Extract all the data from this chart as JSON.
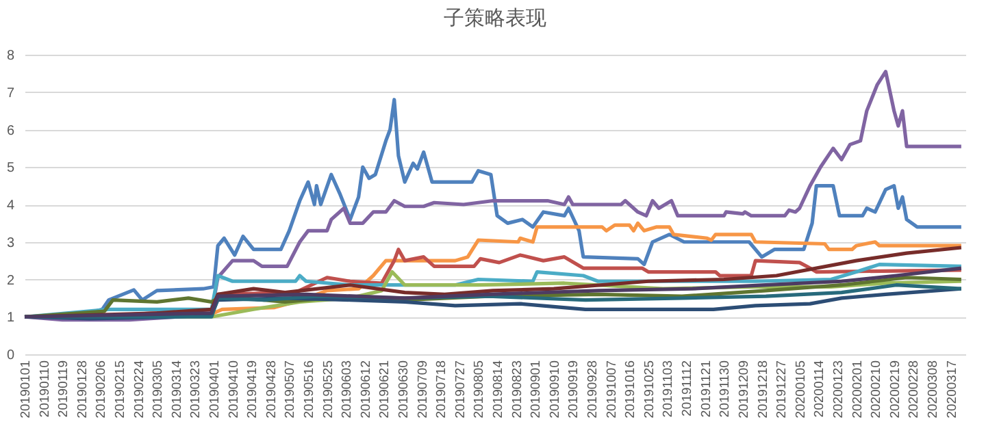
{
  "chart_data": {
    "type": "line",
    "title": "子策略表现",
    "ylim": [
      0,
      8
    ],
    "yticks": [
      0,
      1,
      2,
      3,
      4,
      5,
      6,
      7,
      8
    ],
    "grid": "y",
    "xlim": [
      "2019-01-01",
      "2020-03-24"
    ],
    "xticks": [
      {
        "value": "2019-01-01",
        "label": "20190101"
      },
      {
        "value": "2019-01-10",
        "label": "20190110"
      },
      {
        "value": "2019-01-19",
        "label": "20190119"
      },
      {
        "value": "2019-01-28",
        "label": "20190128"
      },
      {
        "value": "2019-02-06",
        "label": "20190206"
      },
      {
        "value": "2019-02-15",
        "label": "20190215"
      },
      {
        "value": "2019-02-24",
        "label": "20190224"
      },
      {
        "value": "2019-03-05",
        "label": "20190305"
      },
      {
        "value": "2019-03-14",
        "label": "20190314"
      },
      {
        "value": "2019-03-23",
        "label": "20190323"
      },
      {
        "value": "2019-04-01",
        "label": "20190401"
      },
      {
        "value": "2019-04-10",
        "label": "20190410"
      },
      {
        "value": "2019-04-19",
        "label": "20190419"
      },
      {
        "value": "2019-04-28",
        "label": "20190428"
      },
      {
        "value": "2019-05-07",
        "label": "20190507"
      },
      {
        "value": "2019-05-16",
        "label": "20190516"
      },
      {
        "value": "2019-05-25",
        "label": "20190525"
      },
      {
        "value": "2019-06-03",
        "label": "20190603"
      },
      {
        "value": "2019-06-12",
        "label": "20190612"
      },
      {
        "value": "2019-06-21",
        "label": "20190621"
      },
      {
        "value": "2019-06-30",
        "label": "20190630"
      },
      {
        "value": "2019-07-09",
        "label": "20190709"
      },
      {
        "value": "2019-07-18",
        "label": "20190718"
      },
      {
        "value": "2019-07-27",
        "label": "20190727"
      },
      {
        "value": "2019-08-05",
        "label": "20190805"
      },
      {
        "value": "2019-08-14",
        "label": "20190814"
      },
      {
        "value": "2019-08-23",
        "label": "20190823"
      },
      {
        "value": "2019-09-01",
        "label": "20190901"
      },
      {
        "value": "2019-09-10",
        "label": "20190910"
      },
      {
        "value": "2019-09-19",
        "label": "20190919"
      },
      {
        "value": "2019-09-28",
        "label": "20190928"
      },
      {
        "value": "2019-10-07",
        "label": "20191007"
      },
      {
        "value": "2019-10-16",
        "label": "20191016"
      },
      {
        "value": "2019-10-25",
        "label": "20191025"
      },
      {
        "value": "2019-11-03",
        "label": "20191103"
      },
      {
        "value": "2019-11-12",
        "label": "20191112"
      },
      {
        "value": "2019-11-21",
        "label": "20191121"
      },
      {
        "value": "2019-11-30",
        "label": "20191130"
      },
      {
        "value": "2019-12-09",
        "label": "20191209"
      },
      {
        "value": "2019-12-18",
        "label": "20191218"
      },
      {
        "value": "2019-12-27",
        "label": "20191227"
      },
      {
        "value": "2020-01-05",
        "label": "20200105"
      },
      {
        "value": "2020-01-14",
        "label": "20200114"
      },
      {
        "value": "2020-01-23",
        "label": "20200123"
      },
      {
        "value": "2020-02-01",
        "label": "20200201"
      },
      {
        "value": "2020-02-10",
        "label": "20200210"
      },
      {
        "value": "2020-02-19",
        "label": "20200219"
      },
      {
        "value": "2020-02-28",
        "label": "20200228"
      },
      {
        "value": "2020-03-08",
        "label": "20200308"
      },
      {
        "value": "2020-03-17",
        "label": "20200317"
      }
    ],
    "series": [
      {
        "color": "#4f81bd",
        "x": [
          "2019-01-01",
          "2019-01-28",
          "2019-02-07",
          "2019-02-10",
          "2019-02-22",
          "2019-02-26",
          "2019-03-05",
          "2019-03-27",
          "2019-04-01",
          "2019-04-03",
          "2019-04-06",
          "2019-04-11",
          "2019-04-15",
          "2019-04-20",
          "2019-05-03",
          "2019-05-07",
          "2019-05-12",
          "2019-05-16",
          "2019-05-19",
          "2019-05-20",
          "2019-05-22",
          "2019-05-27",
          "2019-05-31",
          "2019-06-05",
          "2019-06-09",
          "2019-06-11",
          "2019-06-14",
          "2019-06-17",
          "2019-06-22",
          "2019-06-24",
          "2019-06-26",
          "2019-06-28",
          "2019-07-01",
          "2019-07-05",
          "2019-07-07",
          "2019-07-10",
          "2019-07-14",
          "2019-08-02",
          "2019-08-05",
          "2019-08-11",
          "2019-08-14",
          "2019-08-19",
          "2019-08-26",
          "2019-08-31",
          "2019-09-05",
          "2019-09-15",
          "2019-09-17",
          "2019-09-22",
          "2019-09-24",
          "2019-10-20",
          "2019-10-23",
          "2019-10-27",
          "2019-11-04",
          "2019-11-11",
          "2019-12-12",
          "2019-12-18",
          "2019-12-24",
          "2020-01-07",
          "2020-01-11",
          "2020-01-13",
          "2020-01-21",
          "2020-01-24",
          "2020-02-04",
          "2020-02-06",
          "2020-02-10",
          "2020-02-15",
          "2020-02-19",
          "2020-02-21",
          "2020-02-23",
          "2020-02-25",
          "2020-03-01",
          "2020-03-22"
        ],
        "values": [
          1.0,
          1.05,
          1.2,
          1.45,
          1.72,
          1.45,
          1.7,
          1.75,
          1.8,
          2.9,
          3.1,
          2.65,
          3.15,
          2.8,
          2.8,
          3.3,
          4.1,
          4.6,
          4.0,
          4.5,
          4.0,
          4.8,
          4.3,
          3.6,
          4.2,
          5.0,
          4.7,
          4.8,
          5.7,
          6.0,
          6.8,
          5.3,
          4.6,
          5.1,
          4.95,
          5.4,
          4.6,
          4.6,
          4.9,
          4.8,
          3.7,
          3.5,
          3.6,
          3.4,
          3.8,
          3.7,
          3.9,
          3.3,
          2.6,
          2.55,
          2.4,
          3.0,
          3.2,
          3.0,
          3.0,
          2.6,
          2.8,
          2.8,
          3.5,
          4.5,
          4.5,
          3.7,
          3.7,
          3.9,
          3.8,
          4.4,
          4.5,
          3.9,
          4.2,
          3.6,
          3.4,
          3.4
        ]
      },
      {
        "color": "#8064a2",
        "x": [
          "2019-01-01",
          "2019-01-19",
          "2019-02-20",
          "2019-03-14",
          "2019-03-31",
          "2019-04-03",
          "2019-04-10",
          "2019-04-20",
          "2019-04-24",
          "2019-05-06",
          "2019-05-12",
          "2019-05-16",
          "2019-05-25",
          "2019-05-27",
          "2019-06-02",
          "2019-06-05",
          "2019-06-11",
          "2019-06-16",
          "2019-06-22",
          "2019-06-26",
          "2019-07-01",
          "2019-07-10",
          "2019-07-15",
          "2019-07-29",
          "2019-08-12",
          "2019-09-07",
          "2019-09-15",
          "2019-09-17",
          "2019-09-19",
          "2019-10-12",
          "2019-10-14",
          "2019-10-20",
          "2019-10-24",
          "2019-10-27",
          "2019-10-30",
          "2019-11-05",
          "2019-11-08",
          "2019-11-30",
          "2019-12-01",
          "2019-12-09",
          "2019-12-10",
          "2019-12-13",
          "2019-12-29",
          "2019-12-31",
          "2020-01-03",
          "2020-01-05",
          "2020-01-10",
          "2020-01-15",
          "2020-01-21",
          "2020-01-25",
          "2020-01-29",
          "2020-02-03",
          "2020-02-06",
          "2020-02-11",
          "2020-02-15",
          "2020-02-19",
          "2020-02-21",
          "2020-02-23",
          "2020-02-25",
          "2020-03-22"
        ],
        "values": [
          1.0,
          0.92,
          0.92,
          1.0,
          1.1,
          2.05,
          2.5,
          2.5,
          2.35,
          2.35,
          3.0,
          3.3,
          3.3,
          3.6,
          3.9,
          3.5,
          3.5,
          3.8,
          3.8,
          4.1,
          3.95,
          3.95,
          4.05,
          4.0,
          4.1,
          4.1,
          4.0,
          4.2,
          4.0,
          4.0,
          4.1,
          3.8,
          3.7,
          4.1,
          3.9,
          4.1,
          3.7,
          3.7,
          3.8,
          3.75,
          3.8,
          3.7,
          3.7,
          3.85,
          3.8,
          3.9,
          4.5,
          5.0,
          5.5,
          5.2,
          5.6,
          5.7,
          6.5,
          7.2,
          7.55,
          6.5,
          6.1,
          6.5,
          5.55,
          5.55
        ]
      },
      {
        "color": "#f79646",
        "x": [
          "2019-01-01",
          "2019-03-28",
          "2019-04-05",
          "2019-04-30",
          "2019-05-10",
          "2019-05-25",
          "2019-06-09",
          "2019-06-16",
          "2019-06-22",
          "2019-07-25",
          "2019-07-31",
          "2019-08-05",
          "2019-08-24",
          "2019-08-25",
          "2019-08-31",
          "2019-09-02",
          "2019-10-03",
          "2019-10-05",
          "2019-10-09",
          "2019-10-16",
          "2019-10-18",
          "2019-10-20",
          "2019-10-23",
          "2019-10-29",
          "2019-11-04",
          "2019-11-06",
          "2019-11-22",
          "2019-11-24",
          "2019-11-26",
          "2019-12-13",
          "2019-12-15",
          "2020-01-17",
          "2020-01-19",
          "2020-01-30",
          "2020-02-01",
          "2020-02-10",
          "2020-02-12",
          "2020-03-22"
        ],
        "values": [
          1.0,
          1.0,
          1.2,
          1.25,
          1.4,
          1.7,
          1.75,
          2.1,
          2.5,
          2.5,
          2.6,
          3.05,
          3.0,
          3.1,
          3.0,
          3.4,
          3.4,
          3.3,
          3.45,
          3.45,
          3.3,
          3.5,
          3.3,
          3.4,
          3.4,
          3.2,
          3.1,
          3.05,
          3.2,
          3.2,
          3.0,
          2.95,
          2.8,
          2.8,
          2.9,
          3.0,
          2.9,
          2.9
        ]
      },
      {
        "color": "#c0504d",
        "x": [
          "2019-01-01",
          "2019-02-15",
          "2019-03-20",
          "2019-03-31",
          "2019-04-03",
          "2019-05-10",
          "2019-05-25",
          "2019-06-05",
          "2019-06-20",
          "2019-06-26",
          "2019-06-28",
          "2019-07-01",
          "2019-07-10",
          "2019-07-15",
          "2019-08-03",
          "2019-08-06",
          "2019-08-15",
          "2019-08-25",
          "2019-09-05",
          "2019-09-15",
          "2019-09-24",
          "2019-10-22",
          "2019-10-25",
          "2019-11-26",
          "2019-11-28",
          "2019-12-13",
          "2019-12-15",
          "2020-01-05",
          "2020-01-10",
          "2020-01-13",
          "2020-03-22"
        ],
        "values": [
          1.0,
          1.05,
          1.15,
          1.2,
          1.6,
          1.65,
          2.05,
          1.95,
          1.9,
          2.5,
          2.8,
          2.5,
          2.6,
          2.35,
          2.35,
          2.55,
          2.45,
          2.65,
          2.5,
          2.6,
          2.3,
          2.3,
          2.2,
          2.2,
          2.1,
          2.1,
          2.5,
          2.45,
          2.3,
          2.2,
          2.25
        ]
      },
      {
        "color": "#4bacc6",
        "x": [
          "2019-01-01",
          "2019-02-10",
          "2019-03-31",
          "2019-04-03",
          "2019-04-10",
          "2019-05-10",
          "2019-05-12",
          "2019-05-15",
          "2019-06-05",
          "2019-07-25",
          "2019-08-05",
          "2019-08-31",
          "2019-09-02",
          "2019-09-24",
          "2019-10-01",
          "2019-12-15",
          "2020-01-20",
          "2020-02-01",
          "2020-02-12",
          "2020-03-22"
        ],
        "values": [
          1.0,
          1.2,
          1.2,
          2.1,
          1.95,
          1.95,
          2.1,
          1.95,
          1.85,
          1.85,
          2.0,
          1.95,
          2.2,
          2.1,
          1.95,
          1.95,
          2.0,
          2.2,
          2.4,
          2.35
        ]
      },
      {
        "color": "#9bbb59",
        "x": [
          "2019-01-01",
          "2019-03-31",
          "2019-04-20",
          "2019-05-12",
          "2019-06-05",
          "2019-06-20",
          "2019-06-25",
          "2019-07-01",
          "2019-08-05",
          "2019-09-15",
          "2019-11-01",
          "2019-12-15",
          "2020-01-20",
          "2020-02-15",
          "2020-03-22"
        ],
        "values": [
          1.0,
          1.0,
          1.2,
          1.4,
          1.5,
          1.7,
          2.2,
          1.85,
          1.85,
          1.9,
          1.75,
          1.8,
          1.8,
          1.9,
          1.95
        ]
      },
      {
        "color": "#5f7530",
        "x": [
          "2019-01-01",
          "2019-02-08",
          "2019-02-12",
          "2019-03-05",
          "2019-03-20",
          "2019-03-31",
          "2019-04-05",
          "2019-05-05",
          "2019-05-25",
          "2019-07-01",
          "2019-08-10",
          "2019-10-01",
          "2019-11-10",
          "2019-12-20",
          "2020-01-25",
          "2020-02-25",
          "2020-03-22"
        ],
        "values": [
          1.0,
          1.15,
          1.45,
          1.4,
          1.5,
          1.4,
          1.55,
          1.4,
          1.5,
          1.45,
          1.55,
          1.6,
          1.55,
          1.7,
          1.85,
          2.05,
          2.0
        ]
      },
      {
        "color": "#772c2a",
        "x": [
          "2019-01-01",
          "2019-03-05",
          "2019-03-31",
          "2019-04-03",
          "2019-04-20",
          "2019-05-05",
          "2019-06-05",
          "2019-07-01",
          "2019-07-20",
          "2019-08-12",
          "2019-09-10",
          "2019-10-25",
          "2019-11-30",
          "2019-12-25",
          "2020-02-01",
          "2020-02-25",
          "2020-03-22"
        ],
        "values": [
          1.0,
          1.1,
          1.2,
          1.6,
          1.75,
          1.65,
          1.85,
          1.65,
          1.6,
          1.7,
          1.75,
          1.95,
          2.0,
          2.1,
          2.5,
          2.7,
          2.85
        ]
      },
      {
        "color": "#2c4d75",
        "x": [
          "2019-01-01",
          "2019-02-01",
          "2019-03-15",
          "2019-03-31",
          "2019-04-03",
          "2019-05-05",
          "2019-06-05",
          "2019-07-01",
          "2019-07-25",
          "2019-08-25",
          "2019-09-25",
          "2019-11-25",
          "2019-12-15",
          "2020-01-10",
          "2020-01-25",
          "2020-02-15",
          "2020-03-22"
        ],
        "values": [
          1.0,
          0.95,
          1.0,
          1.05,
          1.45,
          1.5,
          1.45,
          1.4,
          1.3,
          1.35,
          1.2,
          1.2,
          1.3,
          1.35,
          1.5,
          1.6,
          1.75
        ]
      },
      {
        "color": "#276a7c",
        "x": [
          "2019-01-01",
          "2019-03-31",
          "2019-04-03",
          "2019-04-25",
          "2019-05-20",
          "2019-07-01",
          "2019-08-10",
          "2019-09-25",
          "2019-11-10",
          "2019-12-20",
          "2020-01-25",
          "2020-02-20",
          "2020-03-22"
        ],
        "values": [
          1.0,
          1.0,
          1.5,
          1.45,
          1.55,
          1.5,
          1.55,
          1.45,
          1.5,
          1.55,
          1.65,
          1.85,
          1.75
        ]
      },
      {
        "color": "#4d3b62",
        "x": [
          "2019-01-01",
          "2019-03-31",
          "2019-04-03",
          "2019-05-15",
          "2019-07-01",
          "2019-08-10",
          "2019-10-01",
          "2019-11-15",
          "2019-12-20",
          "2020-01-25",
          "2020-02-20",
          "2020-03-22"
        ],
        "values": [
          1.0,
          1.1,
          1.55,
          1.6,
          1.5,
          1.6,
          1.7,
          1.75,
          1.85,
          1.95,
          2.1,
          2.3
        ]
      }
    ]
  }
}
